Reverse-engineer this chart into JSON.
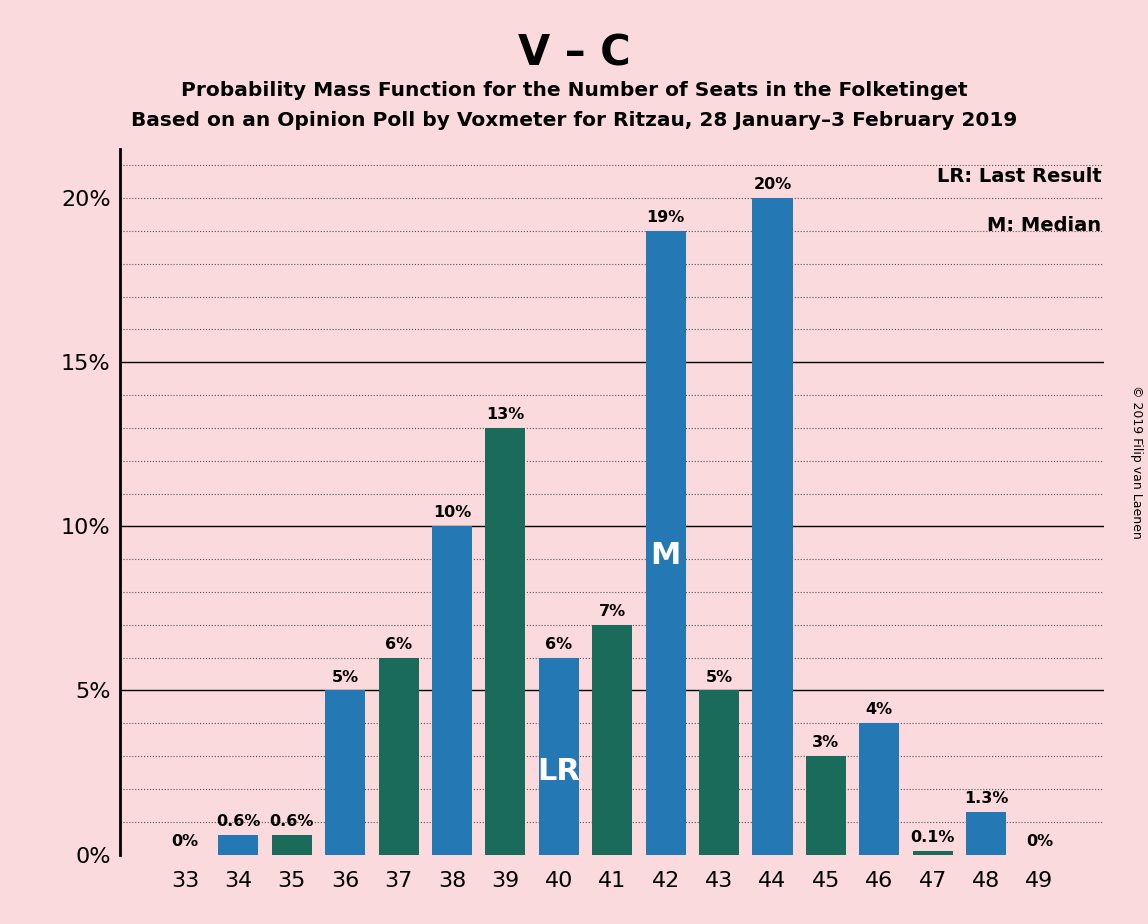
{
  "title_main": "V – C",
  "title_sub1": "Probability Mass Function for the Number of Seats in the Folketinget",
  "title_sub2": "Based on an Opinion Poll by Voxmeter for Ritzau, 28 January–3 February 2019",
  "copyright": "© 2019 Filip van Laenen",
  "categories": [
    33,
    34,
    35,
    36,
    37,
    38,
    39,
    40,
    41,
    42,
    43,
    44,
    45,
    46,
    47,
    48,
    49
  ],
  "values": [
    0.0,
    0.6,
    0.6,
    5.0,
    6.0,
    10.0,
    13.0,
    6.0,
    7.0,
    19.0,
    5.0,
    20.0,
    3.0,
    4.0,
    0.1,
    1.3,
    0.0
  ],
  "labels": [
    "0%",
    "0.6%",
    "0.6%",
    "5%",
    "6%",
    "10%",
    "13%",
    "6%",
    "7%",
    "19%",
    "5%",
    "20%",
    "3%",
    "4%",
    "0.1%",
    "1.3%",
    "0%"
  ],
  "bar_colors": [
    "#2478b4",
    "#2478b4",
    "#1a6b5a",
    "#2478b4",
    "#1a6b5a",
    "#2478b4",
    "#1a6b5a",
    "#2478b4",
    "#1a6b5a",
    "#2478b4",
    "#1a6b5a",
    "#2478b4",
    "#1a6b5a",
    "#2478b4",
    "#1a6b5a",
    "#2478b4",
    "#1a6b5a"
  ],
  "background_color": "#fadadd",
  "ylim_max": 21.5,
  "solid_gridlines": [
    5,
    10,
    15
  ],
  "dotted_gridlines": [
    1,
    2,
    3,
    4,
    6,
    7,
    8,
    9,
    11,
    12,
    13,
    14,
    16,
    17,
    18,
    19,
    20,
    21
  ],
  "lr_label_bar_index": 7,
  "m_label_bar_index": 9,
  "legend_lr": "LR: Last Result",
  "legend_m": "M: Median"
}
